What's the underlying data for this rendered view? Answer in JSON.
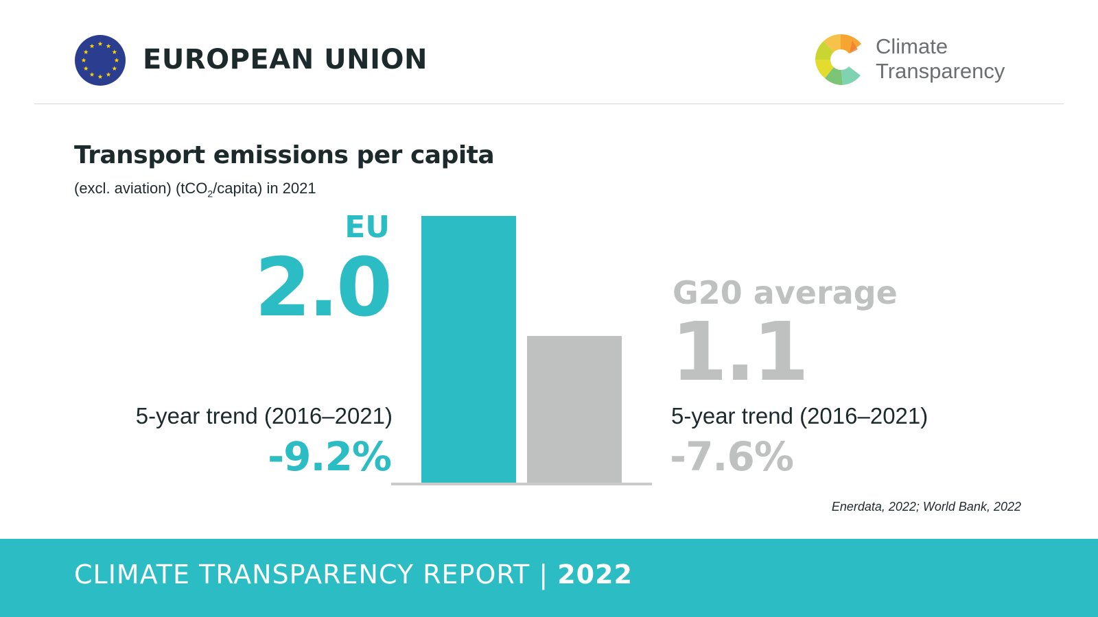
{
  "header": {
    "country": "EUROPEAN UNION",
    "brand_line1": "Climate",
    "brand_line2": "Transparency",
    "flag_icon": "eu-flag-icon",
    "logo_icon": "climate-transparency-logo-icon"
  },
  "chart": {
    "title": "Transport emissions per capita",
    "subtitle_pre": "(excl. aviation) (tCO",
    "subtitle_sub": "2",
    "subtitle_post": "/capita) in 2021",
    "eu_label": "EU",
    "eu_value": "2.0",
    "g20_label": "G20 average",
    "g20_value": "1.1",
    "eu_trend_label": "5-year trend (2016–2021)",
    "eu_trend_value": "-9.2%",
    "g20_trend_label": "5-year trend (2016–2021)",
    "g20_trend_value": "-7.6%",
    "source": "Enerdata, 2022; World Bank, 2022"
  },
  "chart_data": {
    "type": "bar",
    "categories": [
      "EU",
      "G20 average"
    ],
    "values": [
      2.0,
      1.1
    ],
    "colors": [
      "#2bbdc3",
      "#bfc1c1"
    ],
    "title": "Transport emissions per capita",
    "ylabel": "",
    "xlabel": "",
    "grid": false
  },
  "footer": {
    "text": "CLIMATE TRANSPARENCY REPORT",
    "separator": "|",
    "year": "2022"
  },
  "colors": {
    "accent": "#2bbdc3",
    "grey": "#bfc1c1",
    "dark": "#1d2a2c"
  }
}
